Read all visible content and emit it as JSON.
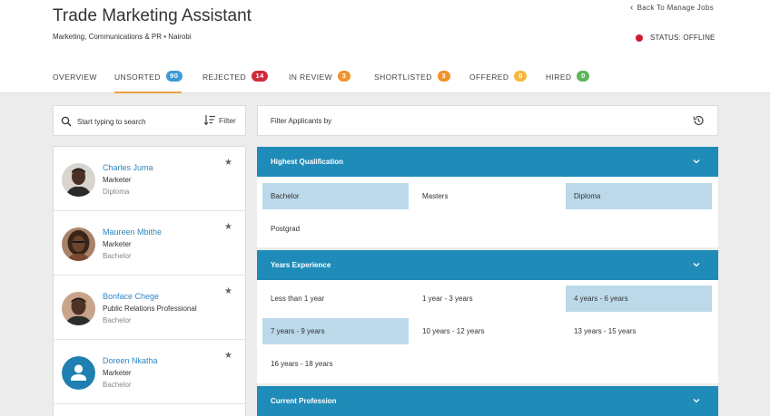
{
  "header": {
    "title": "Trade Marketing Assistant",
    "subtitle": "Marketing, Communications & PR • Nairobi",
    "back_label": "Back To Manage Jobs",
    "status_label": "STATUS: OFFLINE",
    "status_color": "#d01c33"
  },
  "tabs": [
    {
      "label": "OVERVIEW",
      "count": null,
      "color": null
    },
    {
      "label": "UNSORTED",
      "count": "90",
      "color": "#3d9ad6"
    },
    {
      "label": "REJECTED",
      "count": "14",
      "color": "#d02b3c"
    },
    {
      "label": "IN REVIEW",
      "count": "3",
      "color": "#f0942b"
    },
    {
      "label": "SHORTLISTED",
      "count": "3",
      "color": "#f0942b"
    },
    {
      "label": "OFFERED",
      "count": "0",
      "color": "#f4b93c"
    },
    {
      "label": "HIRED",
      "count": "0",
      "color": "#5cb85c"
    }
  ],
  "active_tab": "UNSORTED",
  "search": {
    "placeholder": "Start typing to search",
    "filter_label": "Filter"
  },
  "candidates": [
    {
      "name": "Charles Juma",
      "role": "Marketer",
      "education": "Diploma",
      "avatar": "photo"
    },
    {
      "name": "Maureen Mbithe",
      "role": "Marketer",
      "education": "Bachelor",
      "avatar": "photo"
    },
    {
      "name": "Bonface Chege",
      "role": "Public Relations Professional",
      "education": "Bachelor",
      "avatar": "photo"
    },
    {
      "name": "Doreen Nkatha",
      "role": "Marketer",
      "education": "Bachelor",
      "avatar": "person-icon"
    }
  ],
  "filters": {
    "title": "Filter Applicants by",
    "sections": [
      {
        "title": "Highest Qualification",
        "options": [
          {
            "label": "Bachelor",
            "selected": true
          },
          {
            "label": "Masters",
            "selected": false
          },
          {
            "label": "Diploma",
            "selected": true
          },
          {
            "label": "Postgrad",
            "selected": false
          }
        ]
      },
      {
        "title": "Years Experience",
        "options": [
          {
            "label": "Less than 1 year",
            "selected": false
          },
          {
            "label": "1 year - 3 years",
            "selected": false
          },
          {
            "label": "4 years - 6 years",
            "selected": true
          },
          {
            "label": "7 years - 9 years",
            "selected": true
          },
          {
            "label": "10 years - 12 years",
            "selected": false
          },
          {
            "label": "13 years - 15 years",
            "selected": false
          },
          {
            "label": "16 years - 18 years",
            "selected": false
          }
        ]
      },
      {
        "title": "Current Profession",
        "options": []
      }
    ]
  },
  "colors": {
    "accent_blue": "#1f8bb8",
    "selected_option": "#bcd9ea",
    "link_blue": "#2e86c1",
    "active_tab_underline": "#f0a040"
  }
}
